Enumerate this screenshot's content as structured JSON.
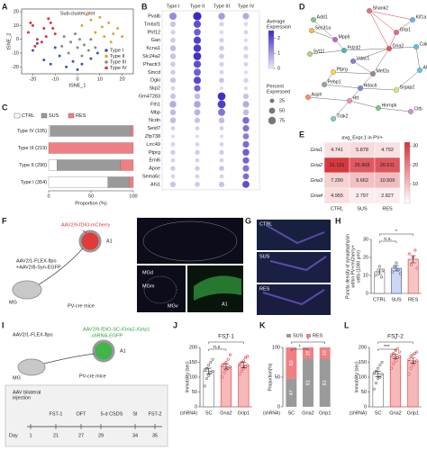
{
  "panel_labels": [
    "A",
    "B",
    "C",
    "D",
    "E",
    "F",
    "G",
    "H",
    "I",
    "J",
    "K",
    "L"
  ],
  "chart_data": [
    {
      "type": "scatter",
      "title": "Sub-cluster plot",
      "xlabel": "tSNE_1",
      "ylabel": "tSNE_2",
      "xlim": [
        -25,
        25
      ],
      "ylim": [
        -25,
        22
      ],
      "xticks": [
        -20,
        -10,
        0,
        10,
        20
      ],
      "yticks": [
        -20,
        -10,
        0,
        10,
        20
      ],
      "series": [
        {
          "name": "Type I",
          "color": "#3d5aa8",
          "x": [
            -20,
            -15,
            -12,
            -8,
            -5,
            -2,
            2,
            6,
            9,
            -18,
            -10,
            0
          ],
          "y": [
            -8,
            -15,
            -18,
            -12,
            -20,
            -16,
            -18,
            -14,
            -10,
            -3,
            -6,
            -22
          ]
        },
        {
          "name": "Type II",
          "color": "#e2a23b",
          "x": [
            2,
            6,
            10,
            14,
            18,
            8,
            12,
            16,
            4,
            20,
            11,
            15
          ],
          "y": [
            10,
            14,
            16,
            12,
            8,
            5,
            2,
            4,
            18,
            2,
            9,
            -2
          ]
        },
        {
          "name": "Type III",
          "color": "#8a8a8a",
          "x": [
            -6,
            -3,
            0,
            3,
            6,
            -4,
            2,
            5,
            -1,
            8,
            -7,
            1
          ],
          "y": [
            2,
            -2,
            -6,
            -4,
            0,
            -10,
            -12,
            -8,
            4,
            -6,
            -5,
            0
          ]
        },
        {
          "name": "Type IV",
          "color": "#d9343b",
          "x": [
            -22,
            -20,
            -18,
            -15,
            -12,
            -10,
            -16,
            -13,
            -19,
            -11,
            -14,
            -21
          ],
          "y": [
            5,
            10,
            0,
            8,
            12,
            4,
            -2,
            15,
            -5,
            8,
            2,
            12
          ]
        }
      ]
    },
    {
      "type": "dot",
      "columns": [
        "Type I",
        "Type II",
        "Type III",
        "Type IV"
      ],
      "genes": [
        "Pvalb",
        "Tm6sf1",
        "Phf12",
        "Gan",
        "Kcna1",
        "Slc24a2",
        "Phactr3",
        "Smcd",
        "Dgki",
        "Skp2",
        "Gm47283",
        "Fth1",
        "Mbp",
        "Ncdn",
        "Setd7",
        "Zfp738",
        "Lrrc49",
        "Ptprg",
        "Eml6",
        "Apoe",
        "Sema6c",
        "Ahi1"
      ],
      "expression": [
        [
          1.2,
          2.5,
          1.0,
          0.8
        ],
        [
          0.5,
          2.0,
          0.3,
          0.2
        ],
        [
          0.3,
          1.8,
          0.2,
          0.3
        ],
        [
          0.4,
          2.2,
          0.3,
          0.2
        ],
        [
          0.6,
          2.3,
          0.4,
          0.3
        ],
        [
          0.5,
          2.4,
          0.4,
          0.3
        ],
        [
          0.4,
          2.0,
          0.3,
          0.3
        ],
        [
          0.4,
          1.8,
          0.3,
          0.2
        ],
        [
          0.5,
          2.1,
          0.5,
          0.3
        ],
        [
          0.3,
          1.7,
          0.2,
          0.2
        ],
        [
          0.5,
          0.6,
          2.4,
          0.5
        ],
        [
          0.8,
          0.9,
          2.2,
          0.8
        ],
        [
          0.6,
          0.7,
          1.5,
          0.6
        ],
        [
          0.6,
          0.5,
          0.6,
          1.6
        ],
        [
          0.3,
          0.3,
          0.3,
          1.5
        ],
        [
          0.2,
          0.2,
          0.2,
          1.4
        ],
        [
          0.3,
          0.3,
          0.3,
          1.6
        ],
        [
          0.4,
          0.4,
          0.4,
          1.8
        ],
        [
          0.3,
          0.3,
          0.3,
          1.7
        ],
        [
          0.4,
          0.4,
          0.5,
          1.5
        ],
        [
          0.3,
          0.3,
          0.3,
          1.6
        ],
        [
          0.5,
          0.4,
          0.5,
          2.0
        ]
      ],
      "percent": [
        [
          70,
          90,
          60,
          55
        ],
        [
          40,
          70,
          30,
          25
        ],
        [
          30,
          60,
          25,
          25
        ],
        [
          35,
          70,
          30,
          20
        ],
        [
          45,
          75,
          35,
          30
        ],
        [
          45,
          80,
          35,
          30
        ],
        [
          35,
          70,
          30,
          25
        ],
        [
          30,
          65,
          25,
          20
        ],
        [
          40,
          70,
          35,
          30
        ],
        [
          25,
          55,
          20,
          20
        ],
        [
          40,
          45,
          80,
          40
        ],
        [
          60,
          60,
          85,
          55
        ],
        [
          45,
          50,
          65,
          45
        ],
        [
          45,
          40,
          45,
          60
        ],
        [
          25,
          25,
          25,
          55
        ],
        [
          20,
          20,
          20,
          50
        ],
        [
          25,
          25,
          25,
          55
        ],
        [
          30,
          30,
          30,
          60
        ],
        [
          25,
          25,
          25,
          55
        ],
        [
          30,
          30,
          35,
          55
        ],
        [
          25,
          25,
          25,
          50
        ],
        [
          40,
          35,
          40,
          65
        ]
      ],
      "colorbar_label": [
        "Average",
        "Expression"
      ],
      "clim": [
        0,
        2.5
      ],
      "colorbar_ticks": [
        0,
        1,
        2
      ],
      "colors": [
        "#ebe9f7",
        "#3a28c4"
      ],
      "size_label": [
        "Percent",
        "Expressed"
      ],
      "size_ticks": [
        25,
        50,
        75
      ]
    },
    {
      "type": "stacked_hbar",
      "categories": [
        "Type IV (105)",
        "Type III (219)",
        "Type II (290)",
        "Type I (354)"
      ],
      "series": [
        {
          "name": "CTRL",
          "color": "#ffffff",
          "values": [
            2,
            0,
            10,
            70
          ]
        },
        {
          "name": "SUS",
          "color": "#9a9a9a",
          "values": [
            95,
            0,
            75,
            25
          ]
        },
        {
          "name": "RES",
          "color": "#f07f84",
          "values": [
            3,
            100,
            15,
            5
          ]
        }
      ],
      "xlabel": "Proportion (%)",
      "xlim": [
        0,
        100
      ],
      "xticks": [
        0,
        50,
        100
      ]
    },
    {
      "type": "heatmap",
      "title": "avg_Expr.1 in PV+",
      "rows": [
        "Gria1",
        "Gria2",
        "Gria3",
        "Gria4"
      ],
      "columns": [
        "CTRL",
        "SUS",
        "RES"
      ],
      "values": [
        [
          4.741,
          5.878,
          4.792
        ],
        [
          31.115,
          25.908,
          26.511
        ],
        [
          7.29,
          9.662,
          10.506
        ],
        [
          4.955,
          2.797,
          2.827
        ]
      ],
      "value_labels": [
        [
          "4.741",
          "5.878",
          "4.792"
        ],
        [
          "31.115",
          "25.908",
          "26.511"
        ],
        [
          "7.290",
          "9.662",
          "10.506"
        ],
        [
          "4.955",
          "2.797",
          "2.827"
        ]
      ],
      "clim": [
        0,
        32
      ],
      "colorbar_ticks": [
        10,
        20,
        30
      ],
      "colors": [
        "#ffffff",
        "#d6333a"
      ]
    },
    {
      "type": "bar",
      "categories": [
        "CTRL",
        "SUS",
        "RES"
      ],
      "values": [
        12,
        14,
        19
      ],
      "errors": [
        1.5,
        1.5,
        2
      ],
      "points": [
        [
          10,
          12,
          15,
          9,
          13
        ],
        [
          12,
          15,
          17,
          13,
          11
        ],
        [
          22,
          16,
          20,
          24,
          14
        ]
      ],
      "colors": [
        "#ffffff",
        "#cdd6f2",
        "#f7c4c4"
      ],
      "point_colors": [
        "#666666",
        "#3d5aa8",
        "#e0393e"
      ],
      "ylabel": [
        "Puncta density of synaptophysin",
        "within PV+/mCherry+",
        "cells (1000 μm²)"
      ],
      "ylim": [
        0,
        30
      ],
      "yticks": [
        0,
        10,
        20,
        30
      ],
      "comparisons": [
        {
          "label": "n.s.",
          "pair": [
            "CTRL",
            "SUS"
          ]
        },
        {
          "label": "*",
          "pair": [
            "CTRL",
            "RES"
          ]
        }
      ]
    },
    {
      "type": "bar",
      "title": "FST-1",
      "xlabel": "(shRNA)",
      "categories": [
        "SC",
        "Gria2",
        "Grip1"
      ],
      "values": [
        120,
        135,
        140
      ],
      "errors": [
        10,
        8,
        9
      ],
      "points": [
        [
          70,
          95,
          105,
          115,
          120,
          125,
          130,
          140,
          150,
          160
        ],
        [
          100,
          115,
          125,
          130,
          135,
          140,
          145,
          150,
          160,
          175
        ],
        [
          110,
          120,
          130,
          135,
          140,
          145,
          150,
          155,
          165,
          170
        ]
      ],
      "colors": [
        "#ffffff",
        "#f6b8b8",
        "#f6b8b8"
      ],
      "point_colors": [
        "#666666",
        "#e0393e",
        "#e0393e"
      ],
      "ylabel": [
        "Immobility (sec)"
      ],
      "ylim": [
        0,
        200
      ],
      "yticks": [
        0,
        50,
        100,
        150,
        200
      ],
      "comparisons": [
        {
          "label": "n.s.",
          "pair": [
            "SC",
            "Gria2"
          ]
        },
        {
          "label": "*",
          "pair": [
            "SC",
            "Grip1"
          ]
        }
      ]
    },
    {
      "type": "stacked_bar",
      "xlabel": "(shRNA)",
      "categories": [
        "SC",
        "Gria2",
        "Grip1"
      ],
      "series": [
        {
          "name": "SUS",
          "color": "#9a9a9a",
          "values": [
            47,
            81,
            81
          ]
        },
        {
          "name": "RES",
          "color": "#f07f84",
          "values": [
            53,
            19,
            19
          ]
        }
      ],
      "ylabel": [
        "Proportion(%)"
      ],
      "ylim": [
        0,
        100
      ],
      "yticks": [
        0,
        50,
        100
      ],
      "comparisons": [
        {
          "label": "*",
          "pair": [
            "SC",
            "Gria2"
          ]
        },
        {
          "label": "*",
          "pair": [
            "SC",
            "Grip1"
          ]
        }
      ]
    },
    {
      "type": "bar",
      "title": "FST-2",
      "xlabel": "(shRNA)",
      "categories": [
        "SC",
        "Gria2",
        "Grip1"
      ],
      "values": [
        110,
        170,
        155
      ],
      "errors": [
        9,
        8,
        9
      ],
      "points": [
        [
          60,
          80,
          95,
          100,
          110,
          115,
          120,
          130,
          140,
          150
        ],
        [
          130,
          145,
          155,
          165,
          170,
          175,
          180,
          190,
          195,
          185
        ],
        [
          110,
          130,
          140,
          150,
          155,
          160,
          170,
          175,
          180,
          185
        ]
      ],
      "colors": [
        "#ffffff",
        "#f6b8b8",
        "#f6b8b8"
      ],
      "point_colors": [
        "#666666",
        "#e0393e",
        "#e0393e"
      ],
      "ylabel": [
        "Immobility (sec)"
      ],
      "ylim": [
        0,
        200
      ],
      "yticks": [
        0,
        50,
        100,
        150,
        200
      ],
      "comparisons": [
        {
          "label": "***",
          "pair": [
            "SC",
            "Gria2"
          ]
        },
        {
          "label": "*",
          "pair": [
            "SC",
            "Grip1"
          ]
        }
      ]
    }
  ],
  "network": {
    "nodes": [
      "Shank2",
      "Add1",
      "Kif1a",
      "Sec31a",
      "Mpp6",
      "Pdzd2",
      "Grip1",
      "Syt11",
      "Vdac1",
      "Gria2",
      "Calr",
      "Ptprg",
      "Mef2a",
      "Pebp1",
      "Hdac6",
      "Srgap2",
      "Asph",
      "Ahi1",
      "Htt",
      "Hnrnpk",
      "Cltb",
      "Trak2"
    ]
  },
  "schematic_f": {
    "virus_top": "AAV2/9-fDIO-mCherry",
    "target": "A1",
    "virus_bottom": [
      "AAV2/1-FLEX-flpo",
      "+AAV2/8-Syn-EGFP"
    ],
    "source": "MG",
    "mouse": "PV-cre mice",
    "regions": [
      "MGd",
      "MGm",
      "MGv"
    ],
    "inset_label": "A1"
  },
  "images_g": {
    "labels": [
      "CTRL",
      "SUS",
      "RES"
    ]
  },
  "schematic_i": {
    "virus_left": "AAV2/1-FLEX-flpo",
    "virus_right": [
      "AAV2/9-fDIO-SC-/Gria2-/Grip1",
      "-shRNA-EGFP"
    ],
    "target": "A1",
    "source": "MG",
    "mouse": "PV-cre mice",
    "timeline": {
      "injection": [
        "AAV bilateral",
        "injection"
      ],
      "events": [
        "FST-1",
        "OFT",
        "5-d CSDS",
        "SI",
        "FST-2"
      ],
      "day_label": "Day",
      "days": [
        1,
        21,
        27,
        29,
        34,
        35
      ]
    }
  }
}
